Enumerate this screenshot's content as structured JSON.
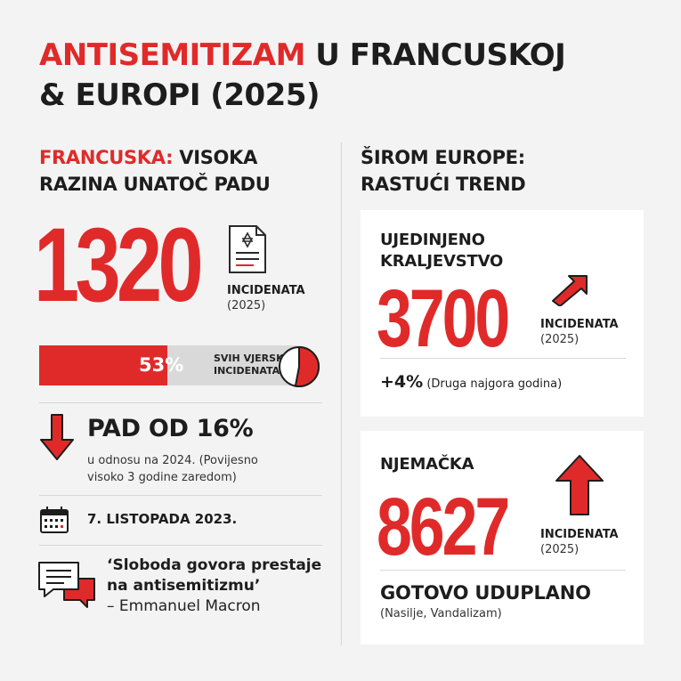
{
  "title": {
    "highlight": "ANTISEMITIZAM",
    "rest_line1": " U FRANCUSKOJ",
    "line2": "& EUROPI (2025)"
  },
  "france": {
    "heading_highlight": "FRANCUSKA:",
    "heading_rest1": " VISOKA",
    "heading_line2": "RAZINA UNATOČ PADU",
    "incidents_number": "1320",
    "incidents_label": "INCIDENATA",
    "incidents_year": "(2025)",
    "share_percent_text": "53%",
    "share_fraction": 0.53,
    "share_label_line1": "SVIH VJERSKIH",
    "share_label_line2": "INCIDENATA",
    "decline_title": "PAD OD 16%",
    "decline_sub_line1": "u odnosu na 2024. (Povijesno",
    "decline_sub_line2": "visoko 3 godine zaredom)",
    "date": "7. LISTOPADA 2023.",
    "quote_line1": "‘Sloboda govora prestaje",
    "quote_line2": "na antisemitizmu’",
    "quote_author": "– Emmanuel Macron",
    "icons": [
      "document-star-icon",
      "pie-icon",
      "arrow-down-icon",
      "calendar-icon",
      "chat-bubbles-icon"
    ]
  },
  "europe": {
    "heading_line1": "ŠIROM EUROPE:",
    "heading_line2": "RASTUĆI TREND",
    "uk": {
      "country_line1": "UJEDINJENO",
      "country_line2": "KRALJEVSTVO",
      "incidents_number": "3700",
      "incidents_label": "INCIDENATA",
      "incidents_year": "(2025)",
      "change_value": "+4%",
      "change_note": " (Druga najgora godina)",
      "icon": "arrow-up-right-icon"
    },
    "germany": {
      "country": "NJEMAČKA",
      "incidents_number": "8627",
      "incidents_label": "INCIDENATA",
      "incidents_year": "(2025)",
      "change_title": "GOTOVO UDUPLANO",
      "change_note": "(Nasilje, Vandalizam)",
      "icon": "arrow-up-icon"
    }
  },
  "colors": {
    "accent": "#e02a2a",
    "background": "#f3f3f3",
    "card": "#ffffff",
    "text": "#1d1d1d"
  }
}
